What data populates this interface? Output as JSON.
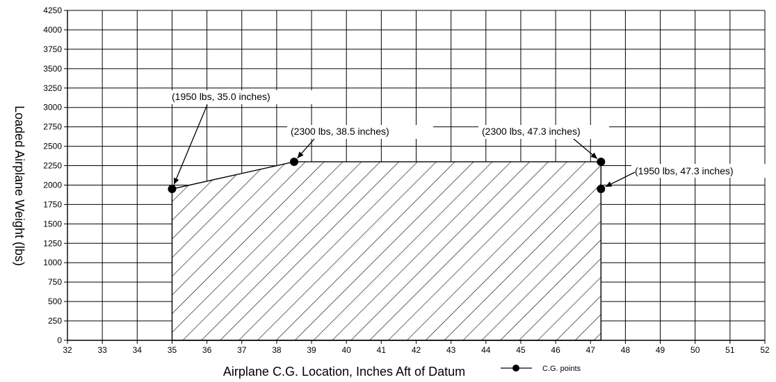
{
  "chart_data": {
    "type": "area",
    "title": "",
    "xlabel": "Airplane C.G. Location, Inches Aft of Datum",
    "ylabel": "Loaded Airplane Weight (lbs)",
    "xlim": [
      32,
      52
    ],
    "ylim": [
      0,
      4250
    ],
    "x_ticks": [
      "32",
      "33",
      "34",
      "35",
      "36",
      "37",
      "38",
      "39",
      "40",
      "41",
      "42",
      "43",
      "44",
      "45",
      "46",
      "47",
      "48",
      "49",
      "50",
      "51",
      "52"
    ],
    "y_ticks": [
      "0",
      "250",
      "500",
      "750",
      "1000",
      "1250",
      "1500",
      "1750",
      "2000",
      "2250",
      "2500",
      "2750",
      "3000",
      "3250",
      "3500",
      "3750",
      "4000",
      "4250"
    ],
    "grid": true,
    "legend": {
      "label": "C.G. points",
      "position": "bottom-right"
    },
    "envelope": [
      {
        "x": 35.0,
        "y": 0
      },
      {
        "x": 35.0,
        "y": 1950
      },
      {
        "x": 38.5,
        "y": 2300
      },
      {
        "x": 47.3,
        "y": 2300
      },
      {
        "x": 47.3,
        "y": 0
      }
    ],
    "series": [
      {
        "name": "C.G. points",
        "points": [
          {
            "x": 35.0,
            "y": 1950,
            "label": "(1950 lbs, 35.0 inches)"
          },
          {
            "x": 38.5,
            "y": 2300,
            "label": "(2300 lbs, 38.5 inches)"
          },
          {
            "x": 47.3,
            "y": 2300,
            "label": "(2300 lbs, 47.3 inches)"
          },
          {
            "x": 47.3,
            "y": 1950,
            "label": "(1950 lbs, 47.3 inches)"
          }
        ]
      }
    ]
  }
}
